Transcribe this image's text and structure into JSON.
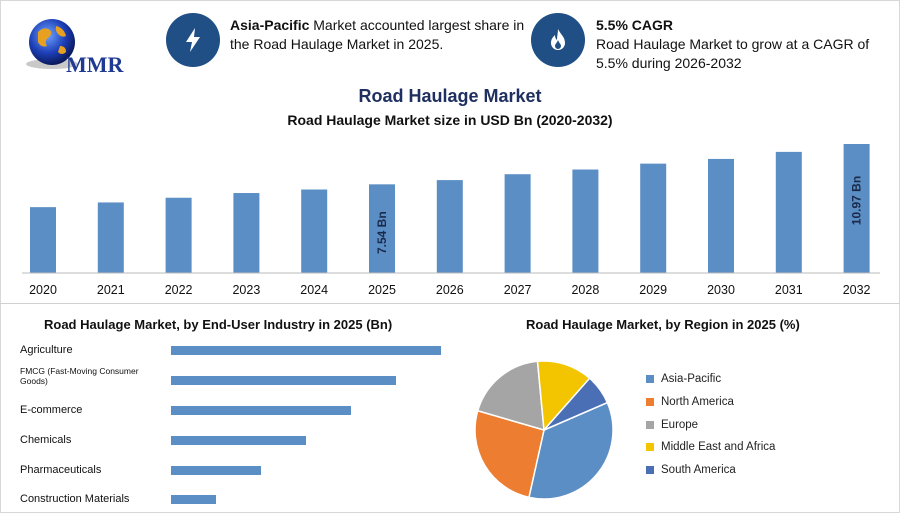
{
  "header": {
    "logo_text": "MMR",
    "info1": {
      "bold": "Asia-Pacific",
      "line1_rest": " Market accounted largest share in",
      "line2": "the Road Haulage Market in 2025.",
      "icon": "lightning-icon"
    },
    "info2": {
      "bold": "5.5% CAGR",
      "line1": "Road Haulage Market to grow at a CAGR of",
      "line2": "5.5% during 2026-2032",
      "icon": "flame-icon"
    }
  },
  "colors": {
    "bar": "#5b8ec4",
    "circle": "#1f4f85",
    "north_america": "#ed7d31",
    "europe": "#a5a5a5",
    "mea": "#f2c500",
    "south_america": "#4a6fb5"
  },
  "chart_data": [
    {
      "type": "bar",
      "title": "Road Haulage Market",
      "subtitle": "Road Haulage Market size in USD Bn (2020-2032)",
      "categories": [
        "2020",
        "2021",
        "2022",
        "2023",
        "2024",
        "2025",
        "2026",
        "2027",
        "2028",
        "2029",
        "2030",
        "2031",
        "2032"
      ],
      "values": [
        5.6,
        6.0,
        6.4,
        6.8,
        7.1,
        7.54,
        7.9,
        8.4,
        8.8,
        9.3,
        9.7,
        10.3,
        10.97
      ],
      "data_labels": [
        {
          "index": 5,
          "text": "7.54 Bn"
        },
        {
          "index": 12,
          "text": "10.97 Bn"
        }
      ],
      "grid": false
    },
    {
      "type": "bar",
      "orientation": "horizontal",
      "title": "Road Haulage Market, by End-User Industry in 2025 (Bn)",
      "categories": [
        "Agriculture",
        "FMCG (Fast-Moving Consumer Goods)",
        "E-commerce",
        "Chemicals",
        "Pharmaceuticals",
        "Construction Materials"
      ],
      "values": [
        6,
        5,
        4,
        3,
        2,
        1
      ],
      "grid": false
    },
    {
      "type": "pie",
      "title": "Road Haulage Market, by Region in 2025 (%)",
      "labels": [
        "Asia-Pacific",
        "North America",
        "Europe",
        "Middle East and Africa",
        "South America"
      ],
      "values": [
        35,
        26,
        19,
        13,
        7
      ],
      "colors": [
        "#5b8ec4",
        "#ed7d31",
        "#a5a5a5",
        "#f2c500",
        "#4a6fb5"
      ],
      "legend": "right"
    }
  ]
}
